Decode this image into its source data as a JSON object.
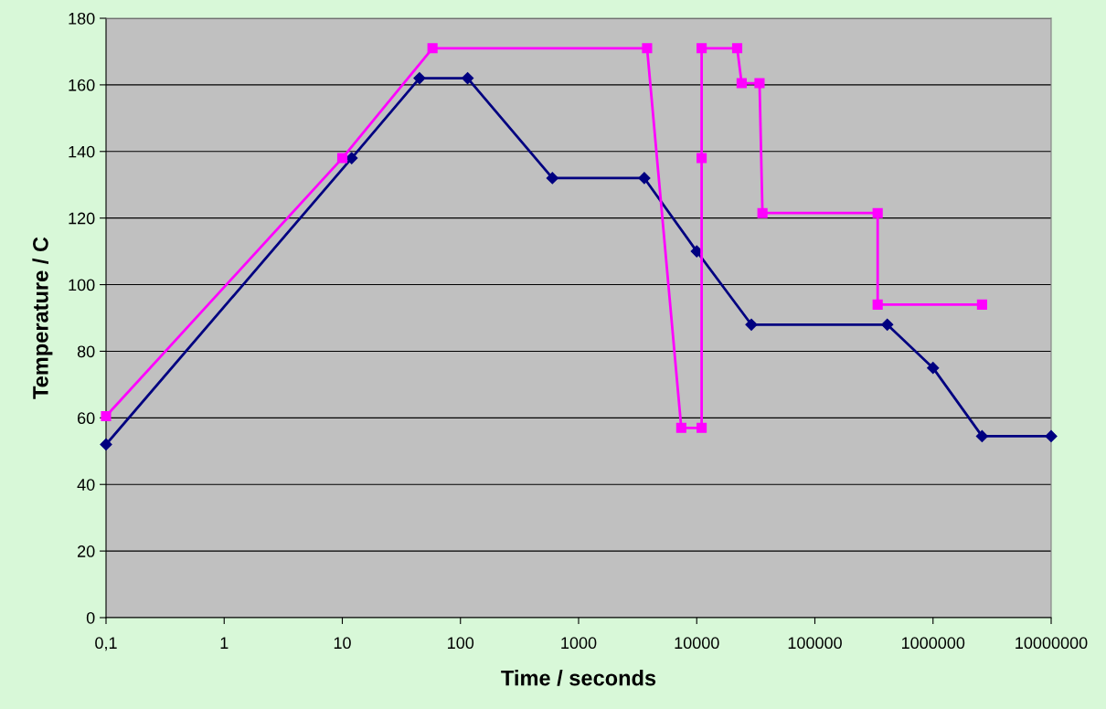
{
  "chart_data": {
    "type": "line",
    "xlabel": "Time / seconds",
    "ylabel": "Temperature / C",
    "log": "x",
    "grid": "y",
    "legend": false,
    "xlim": [
      0.1,
      10000000
    ],
    "xticks": [
      {
        "value": 0.1,
        "label": "0,1"
      },
      1,
      10,
      100,
      1000,
      10000,
      100000,
      1000000,
      10000000
    ],
    "ylim": [
      0,
      180
    ],
    "yticks": [
      0,
      20,
      40,
      60,
      80,
      100,
      120,
      140,
      160,
      180
    ],
    "series": [
      {
        "color": "#000080",
        "marker": "diamond",
        "x": [
          0.1,
          12,
          45,
          115,
          600,
          3600,
          10000,
          29000,
          410000,
          1000000,
          2600000,
          10000000
        ],
        "values": [
          52,
          138,
          162,
          162,
          132,
          132,
          110,
          88,
          88,
          75,
          54.5,
          54.5
        ]
      },
      {
        "color": "#ff00ff",
        "marker": "square",
        "x": [
          0.1,
          10,
          58,
          3800,
          7400,
          11000,
          11000,
          11000,
          22000,
          24000,
          34000,
          36000,
          340000,
          340000,
          2600000
        ],
        "values": [
          60.5,
          138,
          171,
          171,
          57,
          57,
          138,
          171,
          171,
          160.5,
          160.5,
          121.5,
          121.5,
          94,
          94
        ]
      }
    ]
  }
}
